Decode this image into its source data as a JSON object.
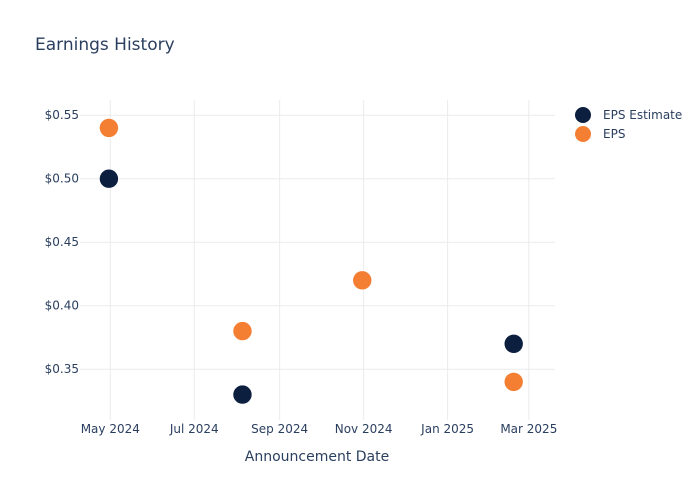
{
  "chart_data": {
    "type": "scatter",
    "title": "Earnings History",
    "xlabel": "Announcement Date",
    "ylabel": "",
    "x_ticks": [
      "May 2024",
      "Jul 2024",
      "Sep 2024",
      "Nov 2024",
      "Jan 2025",
      "Mar 2025"
    ],
    "y_ticks": [
      "$0.35",
      "$0.40",
      "$0.45",
      "$0.50",
      "$0.55"
    ],
    "ylim": [
      0.31,
      0.562
    ],
    "xlim": [
      "2024-04-09",
      "2025-03-20"
    ],
    "grid": true,
    "legend_position": "top-right",
    "series": [
      {
        "name": "EPS Estimate",
        "color": "#0c1f3f",
        "points": [
          {
            "x": "2024-04-30",
            "y": 0.5
          },
          {
            "x": "2024-08-05",
            "y": 0.33
          },
          {
            "x": "2024-10-31",
            "y": 0.42
          },
          {
            "x": "2025-02-18",
            "y": 0.37
          }
        ]
      },
      {
        "name": "EPS",
        "color": "#f47f33",
        "points": [
          {
            "x": "2024-04-30",
            "y": 0.54
          },
          {
            "x": "2024-08-05",
            "y": 0.38
          },
          {
            "x": "2024-10-31",
            "y": 0.42
          },
          {
            "x": "2025-02-18",
            "y": 0.34
          }
        ]
      }
    ]
  }
}
